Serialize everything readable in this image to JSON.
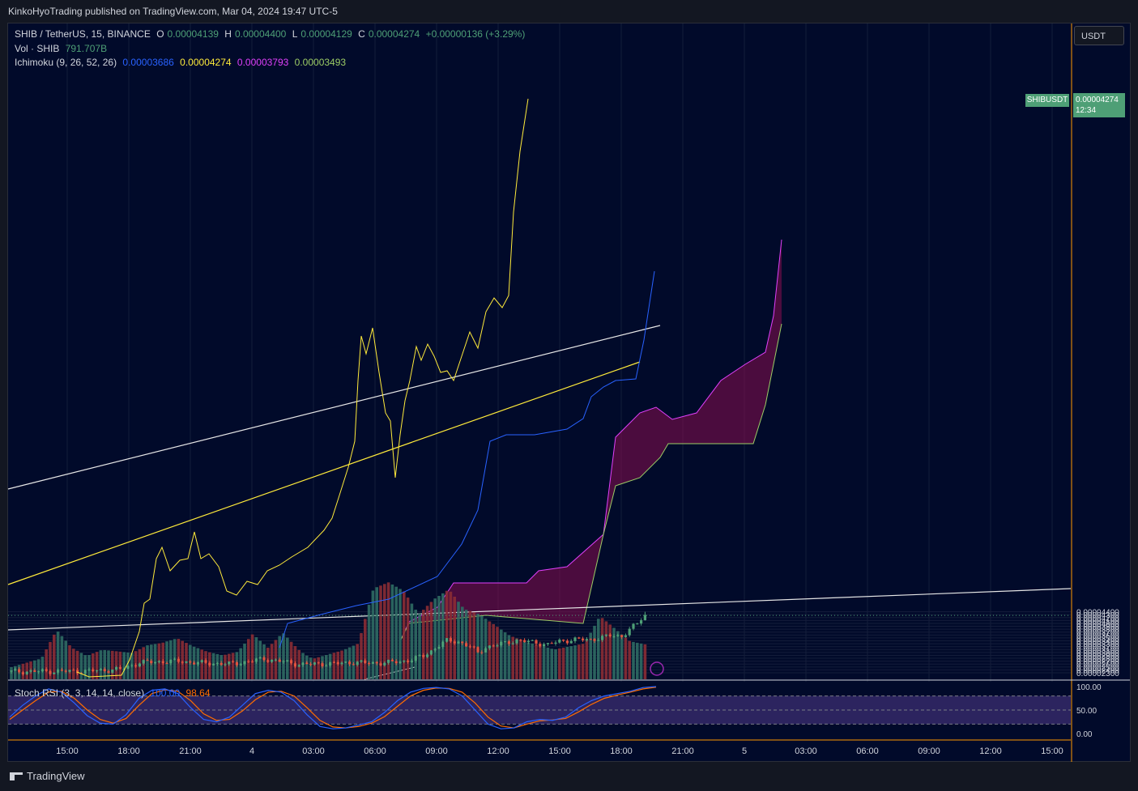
{
  "header": {
    "published_by": "KinkoHyoTrading published on TradingView.com, Mar 04, 2024 19:47 UTC-5"
  },
  "legend": {
    "symbol": "SHIB / TetherUS, 15, BINANCE",
    "o_label": "O",
    "o_value": "0.00004139",
    "h_label": "H",
    "h_value": "0.00004400",
    "l_label": "L",
    "l_value": "0.00004129",
    "c_label": "C",
    "c_value": "0.00004274",
    "change": "+0.00000136 (+3.29%)",
    "vol_label": "Vol · SHIB",
    "vol_value": "791.707B",
    "ichimoku_label": "Ichimoku (9, 26, 52, 26)",
    "ichimoku_values": [
      "0.00003686",
      "0.00004274",
      "0.00003793",
      "0.00003493"
    ],
    "stoch_label": "Stoch RSI (3, 3, 14, 14, close)",
    "stoch_k": "100.00",
    "stoch_d": "98.64"
  },
  "currency_button": "USDT",
  "price_tag": {
    "symbol": "SHIBUSDT",
    "price": "0.00004274",
    "countdown": "12:34"
  },
  "footer": {
    "brand": "TradingView"
  },
  "colors": {
    "up": "#4e9f76",
    "down": "#e0523f",
    "tenkan": "#2962ff",
    "chikou": "#ffeb3b",
    "kumo": "#880e4f",
    "span_b": "#e040fb",
    "span_a": "#9ccc65",
    "stoch_k": "#2962ff",
    "stoch_d": "#ff6d00",
    "background": "#010a2a"
  },
  "chart_data": [
    {
      "type": "candlestick",
      "title": "SHIB / TetherUS, 15, BINANCE",
      "price_axis_labels": [
        "0.00004400",
        "0.00004300",
        "0.00004200",
        "0.00004100",
        "0.00004000",
        "0.00003900",
        "0.00003800",
        "0.00003700",
        "0.00003600",
        "0.00003500",
        "0.00003400",
        "0.00003300",
        "0.00003200",
        "0.00003100",
        "0.00003000",
        "0.00002900",
        "0.00002800",
        "0.00002700",
        "0.00002600",
        "0.00002500",
        "0.00002400",
        "0.00002300"
      ],
      "ylim": [
        2.3e-05,
        4.4e-05
      ],
      "time_axis_labels": [
        "15:00",
        "18:00",
        "21:00",
        "4",
        "03:00",
        "06:00",
        "09:00",
        "12:00",
        "15:00",
        "18:00",
        "21:00",
        "5",
        "03:00",
        "06:00",
        "09:00",
        "12:00",
        "15:00"
      ],
      "close_path": [
        [
          0,
          2.34e-05
        ],
        [
          10,
          2.35e-05
        ],
        [
          20,
          2.36e-05
        ],
        [
          28,
          2.42e-05
        ],
        [
          33,
          2.65e-05
        ],
        [
          38,
          2.68e-05
        ],
        [
          43,
          2.7e-05
        ],
        [
          48,
          2.64e-05
        ],
        [
          53,
          2.62e-05
        ],
        [
          56,
          2.6e-05
        ],
        [
          58,
          2.63e-05
        ],
        [
          62,
          2.71e-05
        ],
        [
          65,
          2.78e-05
        ],
        [
          70,
          2.68e-05
        ],
        [
          74,
          2.59e-05
        ],
        [
          78,
          2.6e-05
        ],
        [
          84,
          2.62e-05
        ],
        [
          88,
          2.66e-05
        ],
        [
          92,
          2.63e-05
        ],
        [
          96,
          2.65e-05
        ],
        [
          100,
          2.68e-05
        ],
        [
          103,
          2.76e-05
        ],
        [
          106,
          2.88e-05
        ],
        [
          108,
          3.05e-05
        ],
        [
          110,
          3.25e-05
        ],
        [
          112,
          3.4e-05
        ],
        [
          115,
          3.37e-05
        ],
        [
          118,
          3.2e-05
        ],
        [
          120,
          2.98e-05
        ],
        [
          122,
          3.18e-05
        ],
        [
          126,
          3.29e-05
        ],
        [
          130,
          3.42e-05
        ],
        [
          134,
          3.35e-05
        ],
        [
          138,
          3.27e-05
        ],
        [
          141,
          3.38e-05
        ],
        [
          145,
          3.45e-05
        ],
        [
          149,
          3.43e-05
        ],
        [
          151,
          3.5e-05
        ],
        [
          154,
          3.57e-05
        ],
        [
          157,
          3.56e-05
        ],
        [
          159,
          3.8e-05
        ],
        [
          161,
          3.98e-05
        ],
        [
          162,
          4.15e-05
        ],
        [
          163,
          4.274e-05
        ]
      ],
      "volume_profile": [
        0.25,
        0.3,
        0.35,
        0.9,
        0.5,
        0.3,
        0.4,
        0.35,
        0.3,
        0.45,
        0.5,
        0.6,
        0.45,
        0.35,
        0.3,
        0.4,
        0.8,
        0.55,
        0.9,
        0.6,
        0.4,
        0.45,
        0.5,
        0.6,
        1.7,
        1.8,
        1.6,
        1.1,
        1.4,
        1.6,
        1.2,
        1.1,
        0.9,
        0.7,
        0.6,
        0.55,
        0.5,
        0.6,
        0.7,
        1.3,
        1.0,
        0.7,
        0.6
      ]
    },
    {
      "type": "line",
      "title": "Stoch RSI (3, 3, 14, 14, close)",
      "ylim": [
        0,
        100
      ],
      "axis_labels": [
        "100.00",
        "50.00",
        "0.00"
      ],
      "k": [
        35,
        60,
        80,
        95,
        88,
        65,
        38,
        22,
        20,
        40,
        75,
        92,
        95,
        85,
        55,
        30,
        25,
        35,
        60,
        85,
        92,
        88,
        70,
        40,
        15,
        10,
        12,
        18,
        25,
        45,
        70,
        88,
        96,
        98,
        95,
        80,
        50,
        20,
        10,
        12,
        25,
        30,
        28,
        35,
        55,
        70,
        80,
        85,
        90,
        98,
        100
      ],
      "d": [
        30,
        50,
        70,
        88,
        90,
        75,
        50,
        30,
        22,
        32,
        60,
        85,
        93,
        90,
        70,
        42,
        28,
        30,
        48,
        72,
        88,
        90,
        80,
        55,
        28,
        14,
        12,
        15,
        22,
        36,
        58,
        80,
        92,
        97,
        96,
        88,
        65,
        35,
        16,
        12,
        20,
        27,
        29,
        32,
        46,
        62,
        75,
        82,
        88,
        95,
        98.64
      ]
    }
  ]
}
